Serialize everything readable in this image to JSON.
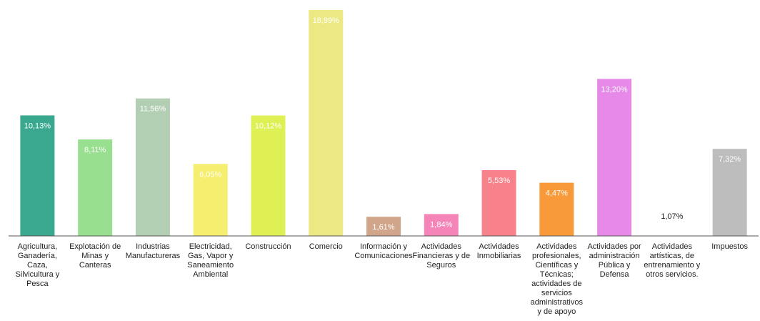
{
  "chart_data": {
    "type": "bar",
    "categories": [
      [
        "Agricultura,",
        "Ganadería,",
        "Caza,",
        "Silvicultura y",
        "Pesca"
      ],
      [
        "Explotación de",
        "Minas y",
        "Canteras"
      ],
      [
        "Industrias",
        "Manufactureras"
      ],
      [
        "Electricidad,",
        "Gas, Vapor y",
        "Saneamiento",
        "Ambiental"
      ],
      [
        "Construcción"
      ],
      [
        "Comercio"
      ],
      [
        "Información y",
        "Comunicaciones"
      ],
      [
        "Actividades",
        "Financieras y de",
        "Seguros"
      ],
      [
        "Actividades",
        "Inmobiliarias"
      ],
      [
        "Actividades",
        "profesionales,",
        "Científicas y",
        "Técnicas;",
        "actividades de",
        "servicios",
        "administrativos",
        "y de apoyo"
      ],
      [
        "Actividades por",
        "administración",
        "Pública y",
        "Defensa"
      ],
      [
        "Actividades",
        "artísticas, de",
        "entrenamiento y",
        "otros servicios."
      ],
      [
        "Impuestos"
      ]
    ],
    "values": [
      10.13,
      8.11,
      11.56,
      6.05,
      10.12,
      18.99,
      1.61,
      1.84,
      5.53,
      4.47,
      13.2,
      1.07,
      7.32
    ],
    "value_labels": [
      "10,13%",
      "8,11%",
      "11,56%",
      "6,05%",
      "10,12%",
      "18,99%",
      "1,61%",
      "1,84%",
      "5,53%",
      "4,47%",
      "13,20%",
      "1,07%",
      "7,32%"
    ],
    "colors": [
      "#3aa88e",
      "#98e08f",
      "#b3cfb3",
      "#f5ee6f",
      "#dff055",
      "#ece883",
      "#d1a58a",
      "#f585b8",
      "#f7828c",
      "#f99a3a",
      "#e689e8",
      "#ffffff",
      "#bdbdbd"
    ],
    "title": "",
    "xlabel": "",
    "ylabel": "",
    "ylim": [
      0,
      19
    ],
    "grid": false,
    "legend": "none"
  }
}
